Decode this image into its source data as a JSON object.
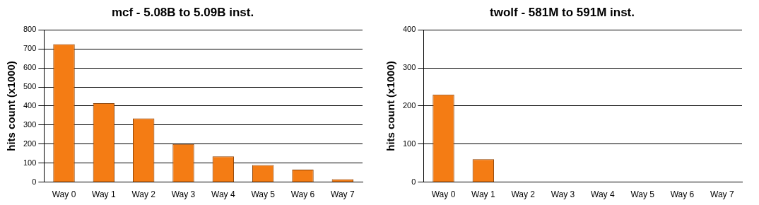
{
  "chart_data": [
    {
      "type": "bar",
      "title": "mcf - 5.08B to 5.09B inst.",
      "ylabel": "hits count (x1000)",
      "categories": [
        "Way 0",
        "Way 1",
        "Way 2",
        "Way 3",
        "Way 4",
        "Way 5",
        "Way 6",
        "Way 7"
      ],
      "values": [
        725,
        415,
        335,
        200,
        135,
        90,
        65,
        15
      ],
      "color": "#f47c14",
      "ylim": [
        0,
        800
      ],
      "yticks": [
        0,
        100,
        200,
        300,
        400,
        500,
        600,
        700,
        800
      ],
      "grid": true
    },
    {
      "type": "bar",
      "title": "twolf - 581M to 591M inst.",
      "ylabel": "hits count (x1000)",
      "categories": [
        "Way 0",
        "Way 1",
        "Way 2",
        "Way 3",
        "Way 4",
        "Way 5",
        "Way 6",
        "Way 7"
      ],
      "values": [
        230,
        60,
        0,
        0,
        0,
        0,
        0,
        0
      ],
      "color": "#f47c14",
      "ylim": [
        0,
        400
      ],
      "yticks": [
        0,
        100,
        200,
        300,
        400
      ],
      "grid": true
    }
  ]
}
